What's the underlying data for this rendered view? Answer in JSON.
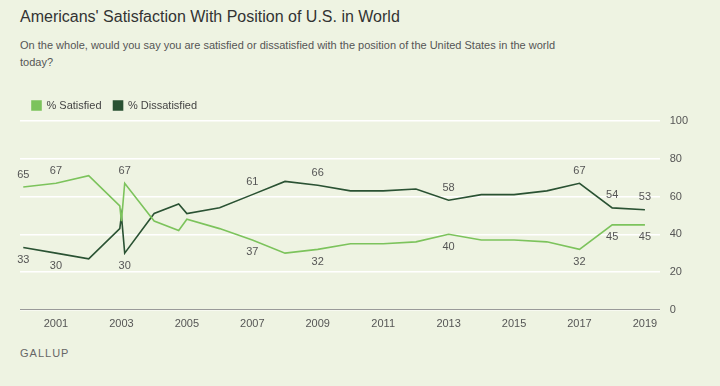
{
  "chart_data": {
    "type": "line",
    "title": "Americans' Satisfaction With Position of U.S. in World",
    "subtitle": "On the whole, would you say you are satisfied or dissatisfied with the position of the United States in the world today?",
    "source": "GALLUP",
    "x": [
      2000,
      2001,
      2002,
      2002.95,
      2003.0,
      2003.1,
      2004,
      2004.75,
      2005,
      2006,
      2007,
      2008,
      2009,
      2010,
      2011,
      2012,
      2013,
      2014,
      2015,
      2016,
      2017,
      2018,
      2019
    ],
    "series": [
      {
        "name": "% Satisfied",
        "color": "#7cc35c",
        "values": [
          65,
          67,
          71,
          55,
          47,
          67,
          47,
          42,
          48,
          43,
          37,
          30,
          32,
          35,
          35,
          36,
          40,
          37,
          37,
          36,
          32,
          45,
          45
        ],
        "value_labels": [
          "65",
          "67",
          null,
          null,
          null,
          "67",
          null,
          null,
          null,
          null,
          "37",
          null,
          "32",
          null,
          null,
          null,
          "40",
          null,
          null,
          null,
          "32",
          "45",
          "45"
        ]
      },
      {
        "name": "% Dissatisfied",
        "color": "#2a5233",
        "values": [
          33,
          30,
          27,
          43,
          50,
          30,
          51,
          56,
          51,
          54,
          61,
          68,
          66,
          63,
          63,
          64,
          58,
          61,
          61,
          63,
          67,
          54,
          53
        ],
        "value_labels": [
          "33",
          "30",
          null,
          null,
          null,
          "30",
          null,
          null,
          null,
          null,
          "61",
          null,
          "66",
          null,
          null,
          null,
          "58",
          null,
          null,
          null,
          "67",
          "54",
          "53"
        ]
      }
    ],
    "xlim": [
      1999.9,
      2019.45
    ],
    "xticks": [
      2001,
      2003,
      2005,
      2007,
      2009,
      2011,
      2013,
      2015,
      2017,
      2019
    ],
    "ylim": [
      0,
      100
    ],
    "yticks": [
      0,
      20,
      40,
      60,
      80,
      100
    ],
    "grid": "y",
    "legend": "top-left",
    "data_labels": true
  }
}
